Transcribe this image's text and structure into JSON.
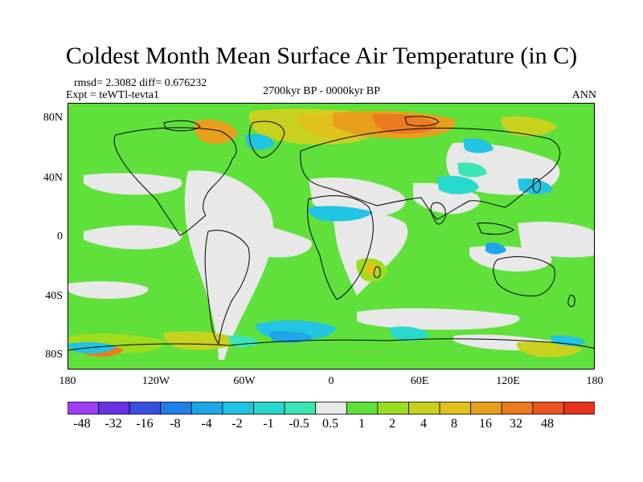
{
  "title": "Coldest Month Mean Surface Air Temperature (in C)",
  "stats": "rmsd= 2.3082 diff= 0.676232",
  "experiment": "Expt = teWTl-tevta1",
  "period": "2700kyr BP - 0000kyr BP",
  "season": "ANN",
  "lat_ticks": [
    "80N",
    "40N",
    "0",
    "40S",
    "80S"
  ],
  "lon_ticks": [
    "180",
    "120W",
    "60W",
    "0",
    "60E",
    "120E",
    "180"
  ],
  "colorbar": {
    "labels": [
      "-48",
      "-32",
      "-16",
      "-8",
      "-4",
      "-2",
      "-1",
      "-0.5",
      "0.5",
      "1",
      "2",
      "4",
      "8",
      "16",
      "32",
      "48"
    ],
    "colors": [
      "#9e3df5",
      "#6a32e6",
      "#3a4fe0",
      "#1f7fe8",
      "#1fa6e8",
      "#21c4e2",
      "#27d9cc",
      "#3be6b4",
      "#e8e8e8",
      "#5fe03a",
      "#9edc1e",
      "#c8d21e",
      "#e0c21a",
      "#e8a01c",
      "#ec7a1e",
      "#ea5420",
      "#e8321e"
    ]
  }
}
